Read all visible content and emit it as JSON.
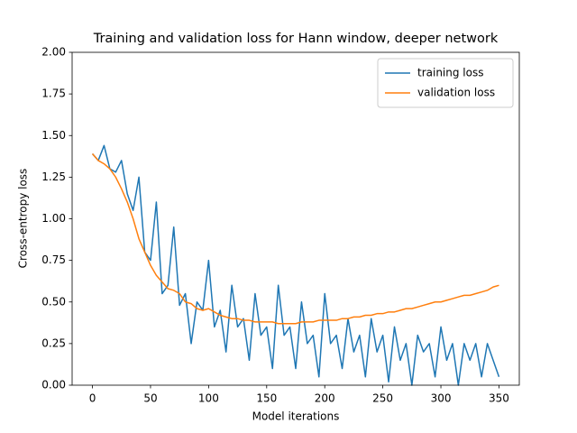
{
  "chart_data": {
    "type": "line",
    "title": "Training and validation loss for Hann window, deeper network",
    "x_label": "Model iterations",
    "y_label": "Cross-entropy loss",
    "x": [
      0,
      5,
      10,
      15,
      20,
      25,
      30,
      35,
      40,
      45,
      50,
      55,
      60,
      65,
      70,
      75,
      80,
      85,
      90,
      95,
      100,
      105,
      110,
      115,
      120,
      125,
      130,
      135,
      140,
      145,
      150,
      155,
      160,
      165,
      170,
      175,
      180,
      185,
      190,
      195,
      200,
      205,
      210,
      215,
      220,
      225,
      230,
      235,
      240,
      245,
      250,
      255,
      260,
      265,
      270,
      275,
      280,
      285,
      290,
      295,
      300,
      305,
      310,
      315,
      320,
      325,
      330,
      335,
      340,
      345,
      350
    ],
    "series": [
      {
        "name": "training loss",
        "color": "#1f77b4",
        "values": [
          1.39,
          1.35,
          1.44,
          1.3,
          1.28,
          1.35,
          1.15,
          1.05,
          1.25,
          0.8,
          0.75,
          1.1,
          0.55,
          0.6,
          0.95,
          0.48,
          0.55,
          0.25,
          0.5,
          0.45,
          0.75,
          0.35,
          0.45,
          0.2,
          0.6,
          0.35,
          0.4,
          0.15,
          0.55,
          0.3,
          0.35,
          0.1,
          0.6,
          0.3,
          0.35,
          0.1,
          0.5,
          0.25,
          0.3,
          0.05,
          0.55,
          0.25,
          0.3,
          0.1,
          0.4,
          0.2,
          0.3,
          0.05,
          0.4,
          0.2,
          0.3,
          0.02,
          0.35,
          0.15,
          0.25,
          0.0,
          0.3,
          0.2,
          0.25,
          0.05,
          0.35,
          0.15,
          0.25,
          0.0,
          0.25,
          0.15,
          0.25,
          0.05,
          0.25,
          0.15,
          0.05
        ]
      },
      {
        "name": "validation loss",
        "color": "#ff7f0e",
        "values": [
          1.39,
          1.35,
          1.33,
          1.3,
          1.25,
          1.18,
          1.1,
          1.0,
          0.88,
          0.8,
          0.72,
          0.66,
          0.62,
          0.58,
          0.57,
          0.55,
          0.5,
          0.49,
          0.46,
          0.45,
          0.46,
          0.44,
          0.42,
          0.41,
          0.4,
          0.4,
          0.39,
          0.39,
          0.38,
          0.38,
          0.38,
          0.38,
          0.37,
          0.37,
          0.37,
          0.37,
          0.38,
          0.38,
          0.38,
          0.39,
          0.39,
          0.39,
          0.39,
          0.4,
          0.4,
          0.41,
          0.41,
          0.42,
          0.42,
          0.43,
          0.43,
          0.44,
          0.44,
          0.45,
          0.46,
          0.46,
          0.47,
          0.48,
          0.49,
          0.5,
          0.5,
          0.51,
          0.52,
          0.53,
          0.54,
          0.54,
          0.55,
          0.56,
          0.57,
          0.59,
          0.6
        ]
      }
    ],
    "xlim": [
      -17.5,
      367.5
    ],
    "xticks": [
      0,
      50,
      100,
      150,
      200,
      250,
      300,
      350
    ],
    "ylim": [
      0,
      2
    ],
    "yticks": [
      {
        "value": 0,
        "label": "0.00"
      },
      {
        "value": 0.25,
        "label": "0.25"
      },
      {
        "value": 0.5,
        "label": "0.50"
      },
      {
        "value": 0.75,
        "label": "0.75"
      },
      {
        "value": 1,
        "label": "1.00"
      },
      {
        "value": 1.25,
        "label": "1.25"
      },
      {
        "value": 1.5,
        "label": "1.50"
      },
      {
        "value": 1.75,
        "label": "1.75"
      },
      {
        "value": 2,
        "label": "2.00"
      }
    ],
    "legend": "upper right",
    "grid": false
  }
}
